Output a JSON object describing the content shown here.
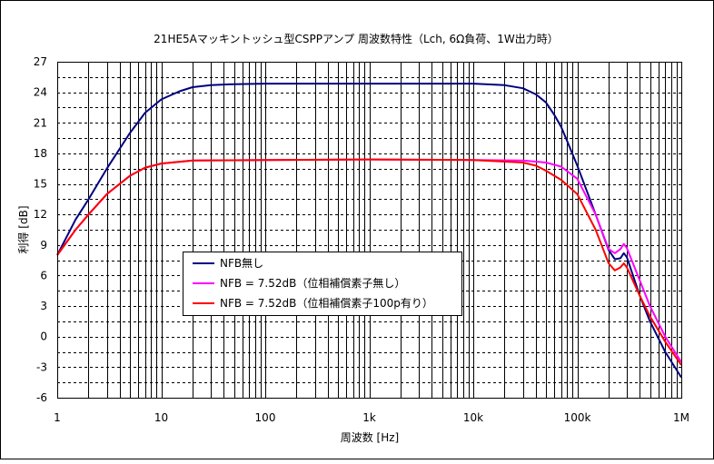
{
  "chart_data": {
    "type": "line",
    "title": "21HE5Aマッキントッシュ型CSPPアンプ 周波数特性（Lch, 6Ω負荷、1W出力時）",
    "xlabel": "周波数 [Hz]",
    "ylabel": "利得 [dB]",
    "x_scale": "log",
    "xlim": [
      1,
      1000000
    ],
    "ylim": [
      -6,
      27
    ],
    "x_ticks": [
      {
        "value": 1,
        "label": "1"
      },
      {
        "value": 10,
        "label": "10"
      },
      {
        "value": 100,
        "label": "100"
      },
      {
        "value": 1000,
        "label": "1k"
      },
      {
        "value": 10000,
        "label": "10k"
      },
      {
        "value": 100000,
        "label": "100k"
      },
      {
        "value": 1000000,
        "label": "1M"
      }
    ],
    "y_ticks": [
      -6,
      -3,
      0,
      3,
      6,
      9,
      12,
      15,
      18,
      21,
      24,
      27
    ],
    "grid": true,
    "legend_position": "center-left",
    "series": [
      {
        "name": "NFB無し",
        "color": "#000080",
        "points": [
          [
            1,
            8
          ],
          [
            1.5,
            11.5
          ],
          [
            2,
            13.5
          ],
          [
            3,
            16.5
          ],
          [
            5,
            20
          ],
          [
            7,
            22
          ],
          [
            10,
            23.3
          ],
          [
            15,
            24.1
          ],
          [
            20,
            24.5
          ],
          [
            30,
            24.7
          ],
          [
            50,
            24.8
          ],
          [
            100,
            24.85
          ],
          [
            1000,
            24.85
          ],
          [
            10000,
            24.85
          ],
          [
            20000,
            24.7
          ],
          [
            30000,
            24.4
          ],
          [
            40000,
            23.8
          ],
          [
            50000,
            23
          ],
          [
            60000,
            21.8
          ],
          [
            70000,
            20.6
          ],
          [
            80000,
            19.2
          ],
          [
            100000,
            16.8
          ],
          [
            150000,
            12
          ],
          [
            200000,
            8.5
          ],
          [
            230000,
            7.6
          ],
          [
            260000,
            7.7
          ],
          [
            280000,
            8.2
          ],
          [
            300000,
            7.8
          ],
          [
            400000,
            4
          ],
          [
            500000,
            1.5
          ],
          [
            700000,
            -1.5
          ],
          [
            1000000,
            -4
          ]
        ]
      },
      {
        "name": "NFB = 7.52dB（位相補償素子無し）",
        "color": "#ff00ff",
        "points": [
          [
            1,
            8
          ],
          [
            1.5,
            10.5
          ],
          [
            2,
            12
          ],
          [
            3,
            14
          ],
          [
            5,
            15.8
          ],
          [
            7,
            16.6
          ],
          [
            10,
            17
          ],
          [
            20,
            17.3
          ],
          [
            100,
            17.35
          ],
          [
            1000,
            17.4
          ],
          [
            10000,
            17.35
          ],
          [
            30000,
            17.3
          ],
          [
            50000,
            17.1
          ],
          [
            70000,
            16.7
          ],
          [
            100000,
            15.5
          ],
          [
            150000,
            12
          ],
          [
            200000,
            8.6
          ],
          [
            230000,
            8.2
          ],
          [
            260000,
            8.6
          ],
          [
            280000,
            9.1
          ],
          [
            300000,
            8.7
          ],
          [
            400000,
            5.5
          ],
          [
            500000,
            3
          ],
          [
            700000,
            0
          ],
          [
            1000000,
            -2.5
          ]
        ]
      },
      {
        "name": "NFB = 7.52dB（位相補償素子100p有り）",
        "color": "#ff0000",
        "points": [
          [
            1,
            8
          ],
          [
            1.5,
            10.5
          ],
          [
            2,
            12
          ],
          [
            3,
            14
          ],
          [
            5,
            15.8
          ],
          [
            7,
            16.6
          ],
          [
            10,
            17
          ],
          [
            20,
            17.3
          ],
          [
            100,
            17.35
          ],
          [
            1000,
            17.4
          ],
          [
            10000,
            17.35
          ],
          [
            30000,
            17.1
          ],
          [
            40000,
            16.8
          ],
          [
            50000,
            16.3
          ],
          [
            70000,
            15.4
          ],
          [
            100000,
            14
          ],
          [
            150000,
            10.5
          ],
          [
            200000,
            7.2
          ],
          [
            230000,
            6.5
          ],
          [
            260000,
            6.8
          ],
          [
            280000,
            7.2
          ],
          [
            300000,
            6.8
          ],
          [
            400000,
            4
          ],
          [
            500000,
            2
          ],
          [
            700000,
            -0.5
          ],
          [
            1000000,
            -2.8
          ]
        ]
      }
    ]
  }
}
